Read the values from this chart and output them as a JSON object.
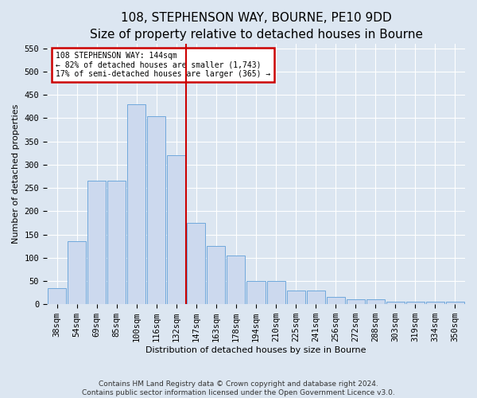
{
  "title": "108, STEPHENSON WAY, BOURNE, PE10 9DD",
  "subtitle": "Size of property relative to detached houses in Bourne",
  "xlabel": "Distribution of detached houses by size in Bourne",
  "ylabel": "Number of detached properties",
  "footer_line1": "Contains HM Land Registry data © Crown copyright and database right 2024.",
  "footer_line2": "Contains public sector information licensed under the Open Government Licence v3.0.",
  "bin_labels": [
    "38sqm",
    "54sqm",
    "69sqm",
    "85sqm",
    "100sqm",
    "116sqm",
    "132sqm",
    "147sqm",
    "163sqm",
    "178sqm",
    "194sqm",
    "210sqm",
    "225sqm",
    "241sqm",
    "256sqm",
    "272sqm",
    "288sqm",
    "303sqm",
    "319sqm",
    "334sqm",
    "350sqm"
  ],
  "bar_heights": [
    35,
    135,
    265,
    265,
    430,
    405,
    320,
    175,
    125,
    105,
    50,
    50,
    30,
    30,
    15,
    10,
    10,
    5,
    5,
    5,
    5
  ],
  "bar_color": "#ccd9ee",
  "bar_edge_color": "#6fa8dc",
  "vline_pos": 6.5,
  "vline_color": "#cc0000",
  "annotation_text": "108 STEPHENSON WAY: 144sqm\n← 82% of detached houses are smaller (1,743)\n17% of semi-detached houses are larger (365) →",
  "annotation_box_color": "#cc0000",
  "annotation_fill_color": "#ffffff",
  "ylim": [
    0,
    560
  ],
  "yticks": [
    0,
    50,
    100,
    150,
    200,
    250,
    300,
    350,
    400,
    450,
    500,
    550
  ],
  "bg_color": "#dce6f1",
  "plot_bg_color": "#dce6f1",
  "grid_color": "#ffffff",
  "title_fontsize": 11,
  "axis_label_fontsize": 8,
  "tick_fontsize": 7.5,
  "footer_fontsize": 6.5
}
